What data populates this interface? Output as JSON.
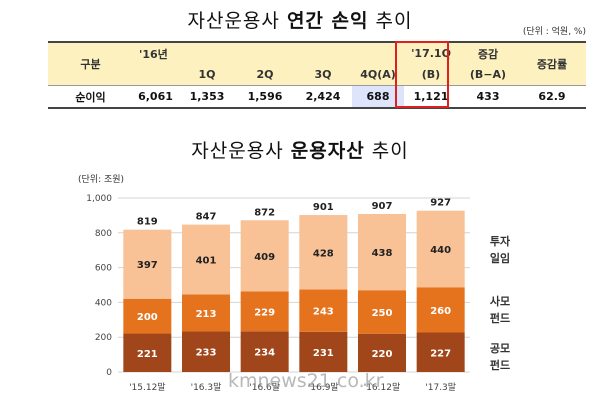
{
  "pl_section": {
    "title_light": "자산운용사",
    "title_bold": "연간 손익",
    "title_tail": "추이",
    "unit": "(단위 : 억원, %)",
    "header_row1": [
      "구분",
      "'16년",
      "",
      "",
      "",
      "'17.1Q",
      "증감",
      "증감률"
    ],
    "header_row2": [
      "",
      "",
      "1Q",
      "2Q",
      "3Q",
      "4Q(A)",
      "(B)",
      "(B−A)",
      ""
    ],
    "row_label": "순이익",
    "row_values": [
      "6,061",
      "1,353",
      "1,596",
      "2,424",
      "688",
      "1,121",
      "433",
      "62.9"
    ]
  },
  "aum_section": {
    "title_light": "자산운용사",
    "title_bold": "운용자산",
    "title_tail": "추이",
    "unit": "(단위: 조원)",
    "side_labels": [
      {
        "top": "투자",
        "bottom": "일임"
      },
      {
        "top": "사모",
        "bottom": "펀드"
      },
      {
        "top": "공모",
        "bottom": "펀드"
      }
    ]
  },
  "chart_data": {
    "type": "bar",
    "stacked": true,
    "categories": [
      "'15.12말",
      "'16.3말",
      "'16.6말",
      "'16.9말",
      "'16.12말",
      "'17.3말"
    ],
    "series": [
      {
        "name": "공모펀드",
        "color": "#a0461a",
        "values": [
          221,
          233,
          234,
          231,
          220,
          227
        ]
      },
      {
        "name": "사모펀드",
        "color": "#e5731e",
        "values": [
          200,
          213,
          229,
          243,
          250,
          260
        ]
      },
      {
        "name": "투자일임",
        "color": "#f8c196",
        "values": [
          397,
          401,
          409,
          428,
          438,
          440
        ]
      }
    ],
    "totals": [
      "819",
      "847",
      "872",
      "901",
      "907",
      "927"
    ],
    "ylim": [
      0,
      1000
    ],
    "yticks": [
      "0",
      "200",
      "400",
      "600",
      "800",
      "1,000"
    ],
    "grid": true
  },
  "watermark": "kmnews21.co.kr"
}
